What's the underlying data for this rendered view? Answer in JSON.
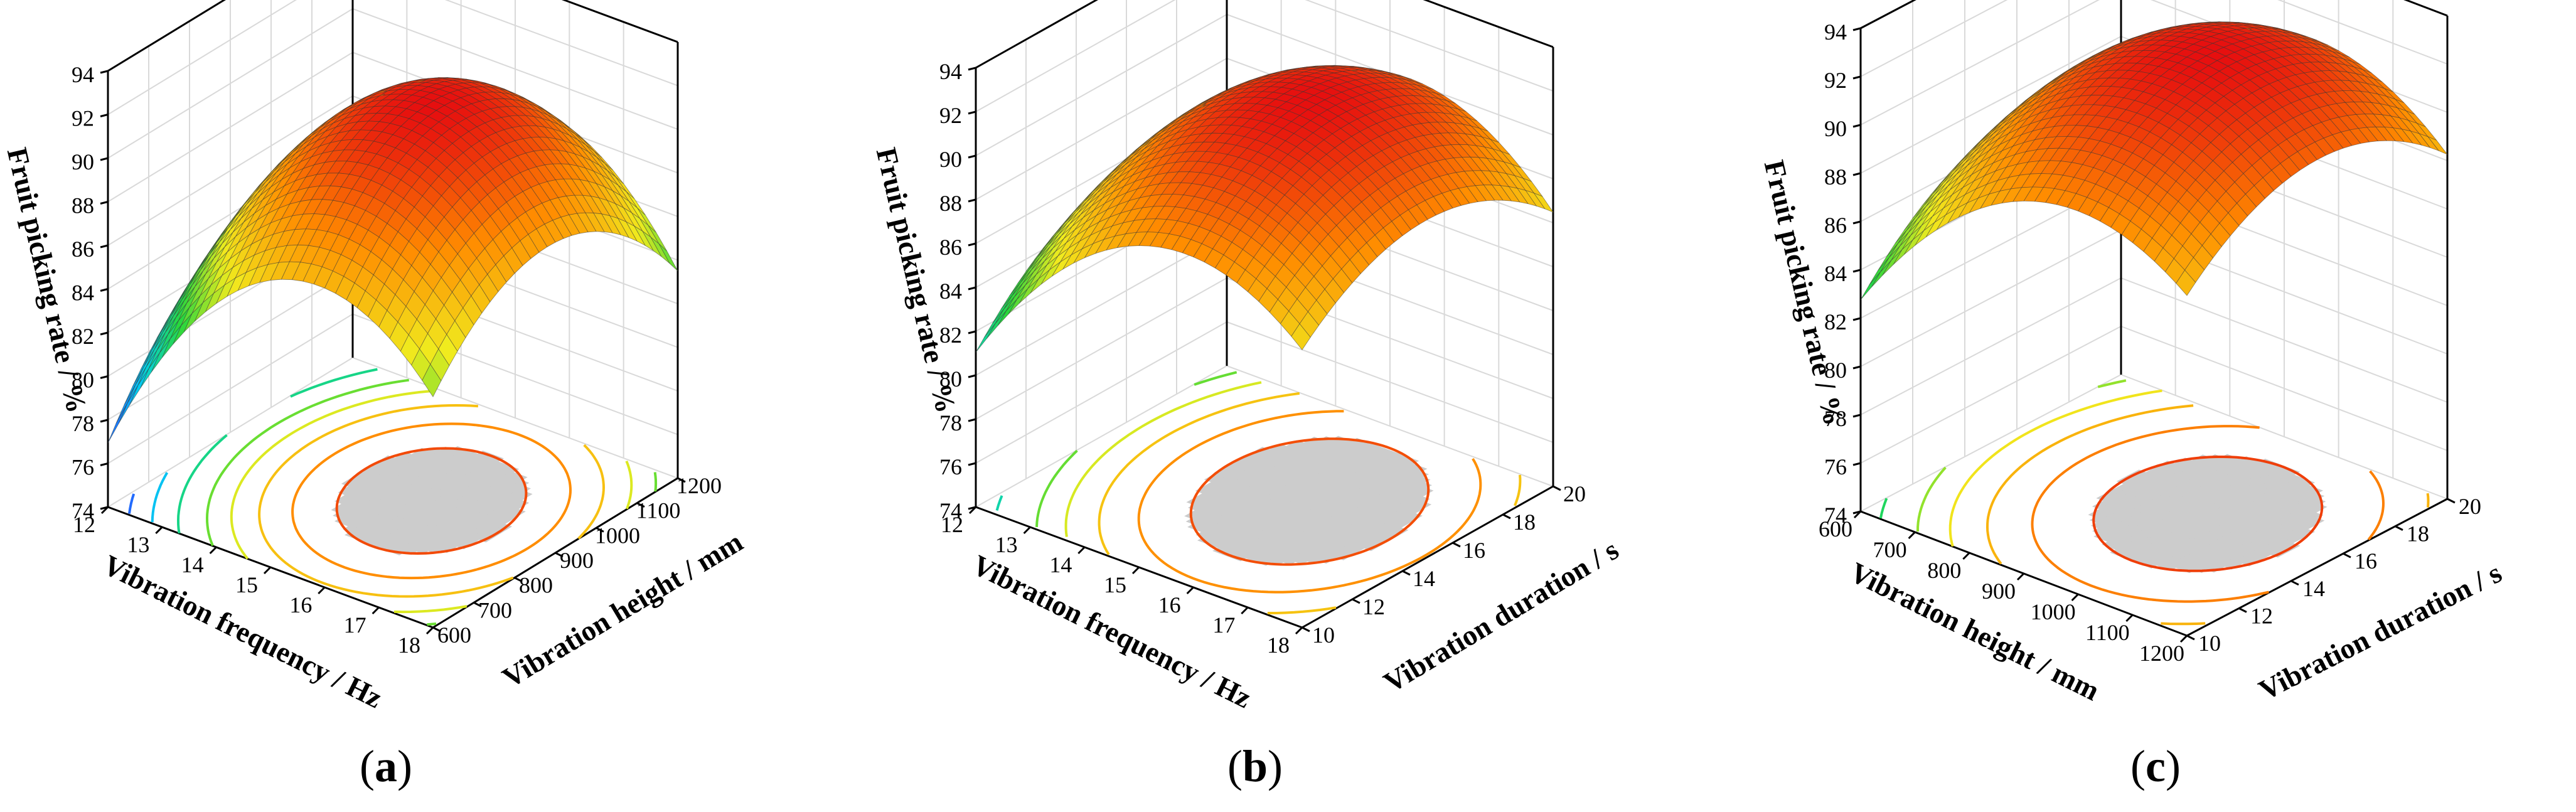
{
  "figure": {
    "background": "#ffffff"
  },
  "chart_data": [
    {
      "type": "surface3d",
      "panel": "a",
      "panel_open": "(",
      "panel_letter": "a",
      "panel_close": ")",
      "zlabel": "Fruit picking rate / %",
      "xlabel": "Vibration frequency / Hz",
      "ylabel": "Vibration height / mm",
      "x_ticks": [
        "12",
        "13",
        "14",
        "15",
        "16",
        "17",
        "18"
      ],
      "y_ticks": [
        "600",
        "700",
        "800",
        "900",
        "1000",
        "1100",
        "1200"
      ],
      "z_ticks": [
        "74",
        "76",
        "78",
        "80",
        "82",
        "84",
        "86",
        "88",
        "90",
        "92",
        "94"
      ],
      "xlim": [
        12,
        18
      ],
      "ylim": [
        600,
        1200
      ],
      "zlim": [
        74,
        94
      ],
      "model": {
        "peak": 92.3,
        "x0": 0.2,
        "y0": 0.05,
        "ax": 6.4,
        "ay": 4.2,
        "axy": 1.2
      },
      "contour_levels": [
        79,
        81,
        83,
        85,
        86.5,
        88,
        89.5,
        91
      ]
    },
    {
      "type": "surface3d",
      "panel": "b",
      "panel_open": "(",
      "panel_letter": "b",
      "panel_close": ")",
      "zlabel": "Fruit picking rate / %",
      "xlabel": "Vibration frequency / Hz",
      "ylabel": "Vibration duration / s",
      "x_ticks": [
        "12",
        "13",
        "14",
        "15",
        "16",
        "17",
        "18"
      ],
      "y_ticks": [
        "10",
        "12",
        "14",
        "16",
        "18",
        "20"
      ],
      "z_ticks": [
        "74",
        "76",
        "78",
        "80",
        "82",
        "84",
        "86",
        "88",
        "90",
        "92",
        "94"
      ],
      "xlim": [
        12,
        18
      ],
      "ylim": [
        10,
        20
      ],
      "zlim": [
        74,
        94
      ],
      "model": {
        "peak": 92.4,
        "x0": 0.2,
        "y0": 0.1,
        "ax": 4.8,
        "ay": 2.8,
        "axy": 0.8
      },
      "contour_levels": [
        80,
        82.5,
        85,
        86.5,
        88,
        89.5,
        91
      ]
    },
    {
      "type": "surface3d",
      "panel": "c",
      "panel_open": "(",
      "panel_letter": "c",
      "panel_close": ")",
      "zlabel": "Fruit picking rate / %",
      "xlabel": "Vibration height / mm",
      "ylabel": "Vibration duration / s",
      "x_ticks": [
        "600",
        "700",
        "800",
        "900",
        "1000",
        "1100",
        "1200"
      ],
      "y_ticks": [
        "10",
        "12",
        "14",
        "16",
        "18",
        "20"
      ],
      "z_ticks": [
        "74",
        "76",
        "78",
        "80",
        "82",
        "84",
        "86",
        "88",
        "90",
        "92",
        "94"
      ],
      "xlim": [
        600,
        1200
      ],
      "ylim": [
        10,
        20
      ],
      "zlim": [
        74,
        94
      ],
      "model": {
        "peak": 93.1,
        "x0": 0.25,
        "y0": 0.1,
        "ax": 4.0,
        "ay": 2.7,
        "axy": 0.6
      },
      "contour_levels": [
        82,
        84,
        86,
        87.5,
        89,
        90.5,
        92
      ]
    }
  ]
}
